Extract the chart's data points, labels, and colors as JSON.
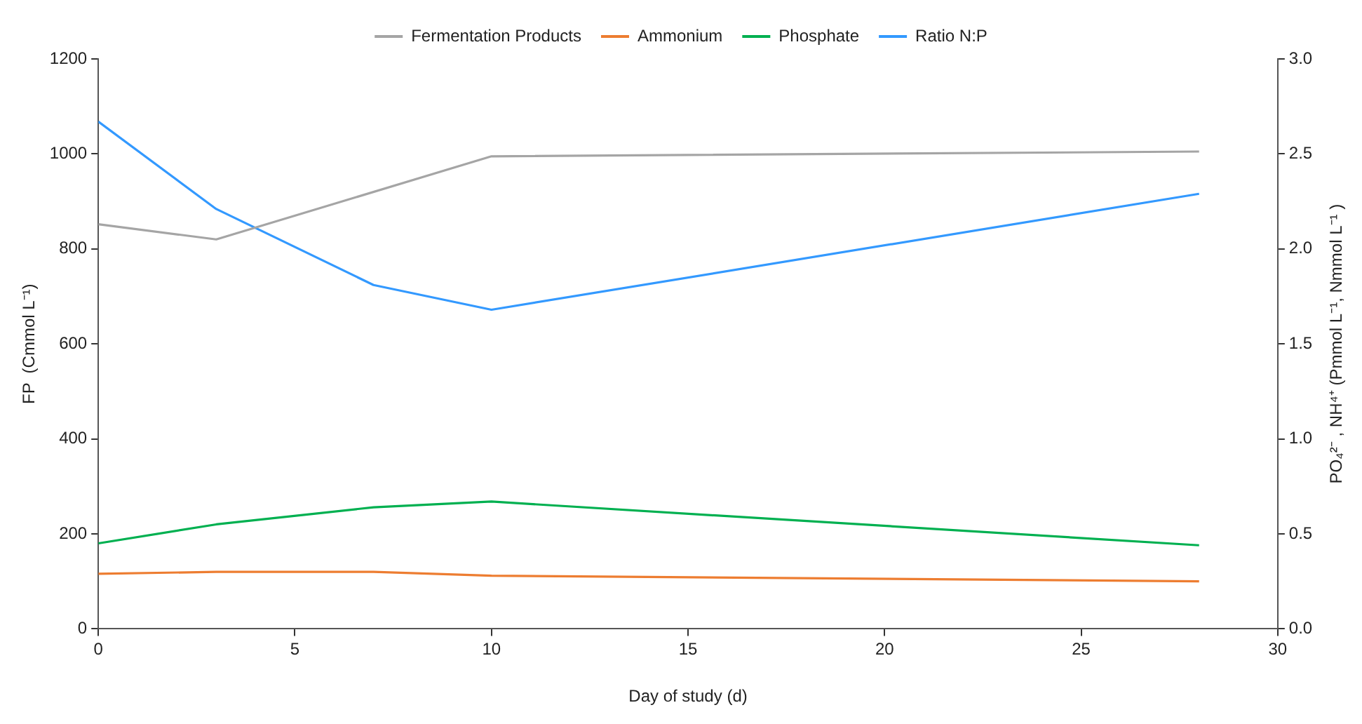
{
  "chart_data": {
    "type": "line",
    "xlabel": "Day of study (d)",
    "ylabel": "FP  (Cmmol L⁻¹)",
    "y2label": "PO₄²⁻ , NH⁴⁺ (Pmmol L⁻¹, Nmmol L⁻¹ )",
    "xlim": [
      0,
      30
    ],
    "xticks": [
      0,
      5,
      10,
      15,
      20,
      25,
      30
    ],
    "ylim": [
      0,
      1200
    ],
    "yticks": [
      0,
      200,
      400,
      600,
      800,
      1000,
      1200
    ],
    "y2lim": [
      0,
      3
    ],
    "y2ticks": [
      {
        "value": 0,
        "label": "0.0"
      },
      {
        "value": 0.5,
        "label": "0.5"
      },
      {
        "value": 1,
        "label": "1.0"
      },
      {
        "value": 1.5,
        "label": "1.5"
      },
      {
        "value": 2,
        "label": "2.0"
      },
      {
        "value": 2.5,
        "label": "2.5"
      },
      {
        "value": 3,
        "label": "3.0"
      }
    ],
    "legend": "top",
    "grid": false,
    "marker": "none",
    "line_style": "solid",
    "series": [
      {
        "name": "Fermentation Products",
        "color": "#a5a5a5",
        "x": [
          0,
          3,
          10,
          28
        ],
        "values": [
          852,
          820,
          995,
          1005
        ]
      },
      {
        "name": "Ammonium",
        "color": "#ed7d31",
        "axis": "y2",
        "x": [
          0,
          3,
          7,
          10,
          28
        ],
        "values": [
          0.29,
          0.3,
          0.3,
          0.28,
          0.25
        ]
      },
      {
        "name": "Phosphate",
        "color": "#00b050",
        "axis": "y2",
        "x": [
          0,
          3,
          7,
          10,
          28
        ],
        "values": [
          0.45,
          0.55,
          0.64,
          0.67,
          0.44
        ]
      },
      {
        "name": "Ratio N:P",
        "color": "#3399ff",
        "axis": "y2",
        "x": [
          0,
          3,
          7,
          10,
          28
        ],
        "values": [
          2.67,
          2.21,
          1.81,
          1.68,
          2.29
        ]
      }
    ]
  }
}
